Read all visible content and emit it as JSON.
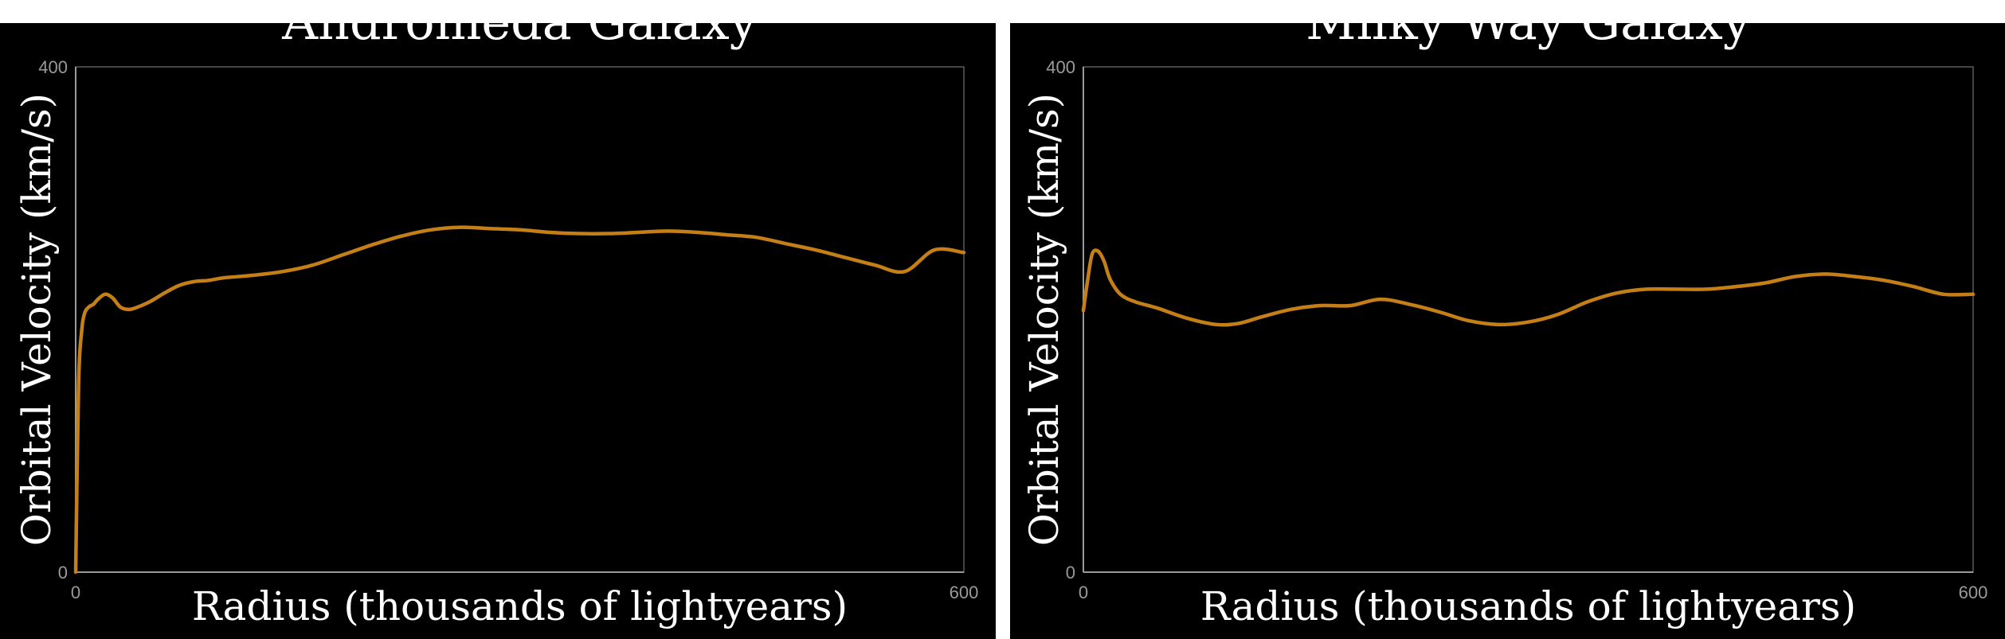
{
  "chart_data": [
    {
      "type": "line",
      "title": "Andromeda Galaxy",
      "xlabel": "Radius (thousands of lightyears)",
      "ylabel": "Orbital Velocity (km/s)",
      "xlim": [
        0,
        600
      ],
      "ylim": [
        0,
        400
      ],
      "xticks": [
        "0",
        "600"
      ],
      "yticks": [
        "0",
        "400"
      ],
      "grid": false,
      "color": "#c47f17",
      "series": [
        {
          "x": [
            0,
            2,
            4,
            6,
            9,
            12,
            15,
            20,
            25,
            30,
            35,
            40,
            50,
            60,
            70,
            80,
            90,
            100,
            120,
            140,
            160,
            180,
            200,
            220,
            240,
            260,
            280,
            300,
            320,
            340,
            360,
            380,
            400,
            420,
            440,
            460,
            480,
            500,
            520,
            540,
            560,
            580,
            600
          ],
          "y": [
            0,
            150,
            190,
            205,
            210,
            212,
            216,
            220,
            217,
            210,
            208,
            209,
            214,
            221,
            227,
            230,
            231,
            233,
            235,
            238,
            243,
            251,
            259,
            266,
            271,
            273,
            272,
            271,
            269,
            268,
            268,
            269,
            270,
            269,
            267,
            265,
            260,
            255,
            249,
            243,
            238,
            255,
            253
          ]
        }
      ]
    },
    {
      "type": "line",
      "title": "Milky Way Galaxy",
      "xlabel": "Radius (thousands of lightyears)",
      "ylabel": "Orbital Velocity (km/s)",
      "xlim": [
        0,
        600
      ],
      "ylim": [
        0,
        400
      ],
      "xticks": [
        "0",
        "600"
      ],
      "yticks": [
        "0",
        "400"
      ],
      "grid": false,
      "color": "#c47f17",
      "series": [
        {
          "x": [
            0,
            3,
            6,
            10,
            14,
            18,
            25,
            35,
            50,
            70,
            90,
            105,
            120,
            140,
            160,
            180,
            200,
            220,
            240,
            260,
            280,
            300,
            320,
            340,
            360,
            380,
            400,
            420,
            440,
            460,
            480,
            500,
            520,
            540,
            560,
            580,
            600
          ],
          "y": [
            207,
            232,
            252,
            254,
            246,
            232,
            220,
            214,
            209,
            201,
            196,
            197,
            202,
            208,
            211,
            211,
            216,
            212,
            206,
            199,
            196,
            198,
            204,
            214,
            221,
            224,
            224,
            224,
            226,
            229,
            234,
            236,
            234,
            231,
            226,
            220,
            220
          ]
        }
      ]
    }
  ]
}
